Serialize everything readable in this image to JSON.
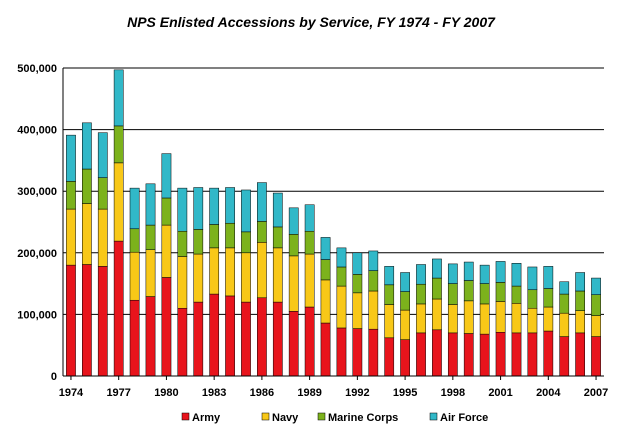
{
  "chart_data": {
    "type": "bar",
    "stacked": true,
    "title": "NPS Enlisted Accessions by Service, FY 1974 - FY 2007",
    "xlabel": "",
    "ylabel": "",
    "ylim": [
      0,
      500000
    ],
    "yticks": [
      0,
      100000,
      200000,
      300000,
      400000,
      500000
    ],
    "ytick_labels": [
      "0",
      "100,000",
      "200,000",
      "300,000",
      "400,000",
      "500,000"
    ],
    "x_tick_labels": [
      "1974",
      "1977",
      "1980",
      "1983",
      "1986",
      "1989",
      "1992",
      "1995",
      "1998",
      "2001",
      "2004",
      "2007"
    ],
    "grid": true,
    "legend_position": "bottom",
    "categories": [
      "1974",
      "1975",
      "1976",
      "1977",
      "1978",
      "1979",
      "1980",
      "1981",
      "1982",
      "1983",
      "1984",
      "1985",
      "1986",
      "1987",
      "1988",
      "1989",
      "1990",
      "1991",
      "1992",
      "1993",
      "1994",
      "1995",
      "1996",
      "1997",
      "1998",
      "1999",
      "2000",
      "2001",
      "2002",
      "2003",
      "2004",
      "2005",
      "2006",
      "2007"
    ],
    "series": [
      {
        "name": "Army",
        "color": "#e8141c",
        "values": [
          180000,
          181000,
          178000,
          219000,
          123000,
          129000,
          160000,
          110000,
          120000,
          133000,
          130000,
          120000,
          127000,
          120000,
          105000,
          112000,
          86000,
          78000,
          77000,
          76000,
          62000,
          59000,
          70000,
          75000,
          70000,
          69000,
          68000,
          71000,
          70000,
          70000,
          73000,
          64000,
          70000,
          64000
        ]
      },
      {
        "name": "Navy",
        "color": "#f8c818",
        "values": [
          91000,
          99000,
          93000,
          127000,
          78000,
          76000,
          85000,
          84000,
          78000,
          75000,
          78000,
          80000,
          90000,
          88000,
          90000,
          86000,
          70000,
          68000,
          58000,
          62000,
          54000,
          48000,
          47000,
          50000,
          46000,
          53000,
          49000,
          50000,
          48000,
          40000,
          39000,
          38000,
          36000,
          34000
        ]
      },
      {
        "name": "Marine Corps",
        "color": "#7cb21c",
        "values": [
          45000,
          56000,
          51000,
          60000,
          38000,
          40000,
          44000,
          41000,
          40000,
          38000,
          40000,
          34000,
          34000,
          34000,
          35000,
          37000,
          33000,
          31000,
          30000,
          33000,
          32000,
          30000,
          32000,
          34000,
          34000,
          33000,
          33000,
          31000,
          28000,
          30000,
          30000,
          31000,
          32000,
          34000
        ]
      },
      {
        "name": "Air Force",
        "color": "#31b8c8",
        "values": [
          75000,
          75000,
          73000,
          91000,
          66000,
          67000,
          72000,
          70000,
          68000,
          59000,
          58000,
          68000,
          63000,
          55000,
          43000,
          43000,
          36000,
          31000,
          35000,
          32000,
          30000,
          31000,
          32000,
          31000,
          32000,
          30000,
          30000,
          34000,
          37000,
          37000,
          36000,
          20000,
          30000,
          27000
        ]
      }
    ]
  }
}
